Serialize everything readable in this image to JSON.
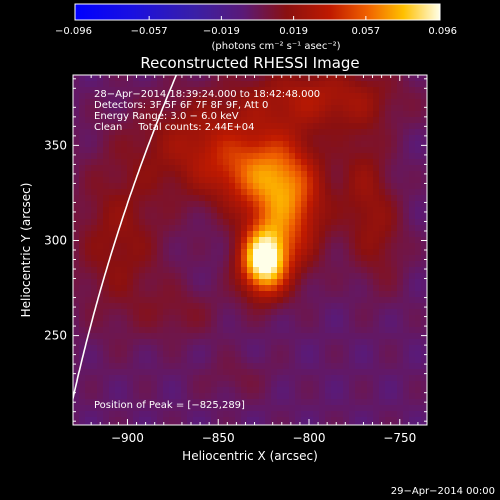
{
  "chart_data": {
    "type": "heatmap",
    "title": "Reconstructed RHESSI Image",
    "xlabel": "Heliocentric X (arcsec)",
    "ylabel": "Heliocentric Y (arcsec)",
    "xlim": [
      -930,
      -735
    ],
    "ylim": [
      203,
      387
    ],
    "xticks": [
      -900,
      -850,
      -800,
      -750
    ],
    "yticks": [
      250,
      300,
      350
    ],
    "xtick_labels": [
      "−900",
      "−850",
      "−800",
      "−750"
    ],
    "ytick_labels": [
      "250",
      "300",
      "350"
    ],
    "colorbar": {
      "range": [
        -0.096,
        0.096
      ],
      "ticks": [
        -0.096,
        -0.057,
        -0.019,
        0.019,
        0.057,
        0.096
      ],
      "tick_labels": [
        "−0.096",
        "−0.057",
        "−0.019",
        "0.019",
        "0.057",
        "0.096"
      ],
      "unit_label": "(photons cm⁻² s⁻¹ asec⁻²)"
    },
    "annotations": [
      "28−Apr−2014 18:39:24.000 to 18:42:48.000",
      "Detectors: 3F 5F 6F 7F 8F 9F, Att 0",
      "Energy Range: 3.0 − 6.0 keV",
      "Clean     Total counts: 2.44E+04"
    ],
    "peak_label": "Position of Peak = [−825,289]",
    "peak": [
      -825,
      289
    ],
    "peak_value": 0.096,
    "sources": [
      {
        "x": -825,
        "y": 289,
        "sx": 9,
        "sy": 12,
        "amp": 0.1
      },
      {
        "x": -812,
        "y": 318,
        "sx": 14,
        "sy": 22,
        "amp": 0.058
      },
      {
        "x": -830,
        "y": 335,
        "sx": 18,
        "sy": 14,
        "amp": 0.038
      },
      {
        "x": -858,
        "y": 350,
        "sx": 26,
        "sy": 18,
        "amp": 0.03
      },
      {
        "x": -795,
        "y": 375,
        "sx": 30,
        "sy": 12,
        "amp": 0.032
      },
      {
        "x": -905,
        "y": 300,
        "sx": 18,
        "sy": 30,
        "amp": 0.022
      },
      {
        "x": -770,
        "y": 330,
        "sx": 10,
        "sy": 24,
        "amp": 0.02
      },
      {
        "x": -760,
        "y": 300,
        "sx": 10,
        "sy": 20,
        "amp": 0.015
      },
      {
        "x": -870,
        "y": 262,
        "sx": 16,
        "sy": 10,
        "amp": 0.012
      },
      {
        "x": -840,
        "y": 228,
        "sx": 14,
        "sy": 8,
        "amp": 0.008
      }
    ],
    "background_level": -0.004,
    "limb_color": "#ffffff"
  },
  "footer": {
    "date": "29−Apr−2014 00:00"
  },
  "colors": {
    "background": "#000000",
    "foreground": "#ffffff"
  }
}
